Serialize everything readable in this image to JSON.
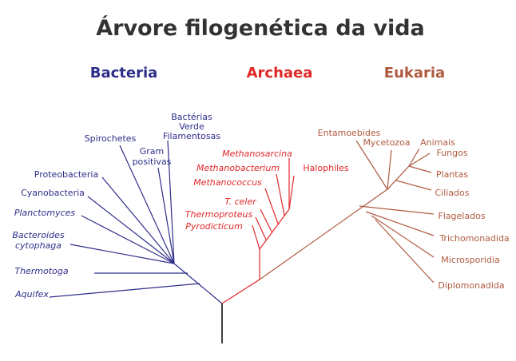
{
  "title": "Árvore filogenética da vida",
  "domains": {
    "bacteria": "Bacteria",
    "archaea": "Archaea",
    "eukaria": "Eukaria"
  },
  "bacteria": [
    [
      "Bactérias",
      "Verde",
      "Filamentosas"
    ],
    [
      "Spirochetes"
    ],
    [
      "Gram",
      "positivas"
    ],
    [
      "Proteobacteria"
    ],
    [
      "Cyanobacteria"
    ],
    [
      "Planctomyces"
    ],
    [
      "Bacteroides",
      "cytophaga"
    ],
    [
      "Thermotoga"
    ],
    [
      "Aquifex"
    ]
  ],
  "archaea": [
    "Methanosarcina",
    "Methanobacterium",
    "Halophiles",
    "Methanococcus",
    "T. celer",
    "Thermoproteus",
    "Pyrodicticum"
  ],
  "eukaria": [
    "Entamoebides",
    "Mycetozoa",
    "Animais",
    "Fungos",
    "Plantas",
    "Ciliados",
    "Flagelados",
    "Trichomonadida",
    "Microsporidia",
    "Diplomonadida"
  ]
}
